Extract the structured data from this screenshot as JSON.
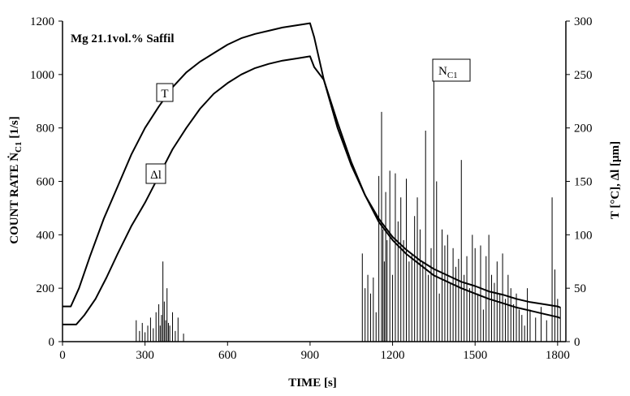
{
  "chart_data": {
    "type": "line",
    "annotation": "Mg 21.1vol.% Saffil",
    "xlabel": "TIME [s]",
    "ylabel_left": "COUNT RATE Ṅ",
    "ylabel_left_sub": "C1",
    "ylabel_left_unit": " [1/s]",
    "ylabel_right": "T [°C], Δl [µm]",
    "xlim": [
      0,
      1830
    ],
    "ylim_left": [
      0,
      1200
    ],
    "ylim_right": [
      0,
      300
    ],
    "xticks": [
      0,
      300,
      600,
      900,
      1200,
      1500,
      1800
    ],
    "yticks_left": [
      0,
      200,
      400,
      600,
      800,
      1000,
      1200
    ],
    "yticks_right": [
      0,
      50,
      100,
      150,
      200,
      250,
      300
    ],
    "grid": false,
    "series": [
      {
        "name": "T",
        "axis": "right",
        "x": [
          0,
          30,
          60,
          100,
          150,
          200,
          250,
          300,
          350,
          400,
          450,
          500,
          550,
          600,
          650,
          700,
          750,
          800,
          850,
          900,
          915,
          950,
          1000,
          1050,
          1100,
          1150,
          1200,
          1250,
          1300,
          1350,
          1400,
          1450,
          1500,
          1550,
          1600,
          1650,
          1700,
          1750,
          1800,
          1810
        ],
        "y": [
          33,
          33,
          50,
          80,
          115,
          145,
          175,
          200,
          220,
          238,
          252,
          262,
          270,
          278,
          284,
          288,
          291,
          294,
          296,
          298,
          285,
          245,
          200,
          165,
          137,
          115,
          98,
          86,
          76,
          68,
          62,
          56,
          52,
          47,
          44,
          40,
          37,
          35,
          33,
          32
        ]
      },
      {
        "name": "Δl",
        "axis": "right",
        "x": [
          0,
          50,
          80,
          120,
          160,
          200,
          250,
          300,
          350,
          400,
          450,
          500,
          550,
          600,
          650,
          700,
          750,
          800,
          850,
          900,
          915,
          950,
          1000,
          1050,
          1100,
          1150,
          1200,
          1250,
          1300,
          1350,
          1400,
          1450,
          1500,
          1550,
          1600,
          1650,
          1700,
          1750,
          1800,
          1810
        ],
        "y": [
          16,
          16,
          25,
          40,
          60,
          82,
          108,
          130,
          155,
          180,
          200,
          218,
          232,
          242,
          250,
          256,
          260,
          263,
          265,
          267,
          257,
          245,
          205,
          168,
          137,
          112,
          95,
          82,
          72,
          62,
          56,
          50,
          45,
          40,
          36,
          32,
          29,
          26,
          23,
          22
        ]
      },
      {
        "name": "N",
        "name_sub": "C1",
        "type": "spikes",
        "axis": "left",
        "x": [
          268,
          280,
          290,
          300,
          310,
          320,
          330,
          340,
          350,
          355,
          360,
          365,
          370,
          375,
          380,
          385,
          390,
          400,
          410,
          420,
          440,
          1090,
          1100,
          1110,
          1120,
          1130,
          1140,
          1150,
          1160,
          1165,
          1170,
          1175,
          1180,
          1190,
          1200,
          1210,
          1220,
          1230,
          1240,
          1250,
          1260,
          1270,
          1280,
          1290,
          1300,
          1310,
          1320,
          1330,
          1340,
          1350,
          1360,
          1370,
          1380,
          1390,
          1400,
          1410,
          1420,
          1430,
          1440,
          1450,
          1460,
          1470,
          1480,
          1490,
          1500,
          1510,
          1520,
          1530,
          1540,
          1550,
          1560,
          1570,
          1580,
          1590,
          1600,
          1610,
          1620,
          1630,
          1640,
          1650,
          1660,
          1670,
          1680,
          1690,
          1700,
          1720,
          1740,
          1760,
          1780,
          1790,
          1800,
          1810
        ],
        "y": [
          80,
          40,
          70,
          35,
          60,
          90,
          50,
          110,
          140,
          60,
          100,
          300,
          150,
          80,
          200,
          70,
          60,
          110,
          40,
          90,
          30,
          330,
          200,
          250,
          180,
          240,
          110,
          620,
          860,
          420,
          300,
          560,
          380,
          640,
          250,
          630,
          450,
          540,
          380,
          610,
          300,
          330,
          470,
          540,
          420,
          300,
          790,
          250,
          350,
          1040,
          600,
          180,
          420,
          360,
          400,
          220,
          350,
          280,
          310,
          680,
          250,
          320,
          200,
          400,
          350,
          180,
          360,
          120,
          320,
          400,
          250,
          220,
          300,
          180,
          330,
          160,
          250,
          200,
          140,
          180,
          120,
          100,
          60,
          200,
          120,
          90,
          130,
          80,
          540,
          270,
          160,
          130
        ]
      }
    ]
  }
}
